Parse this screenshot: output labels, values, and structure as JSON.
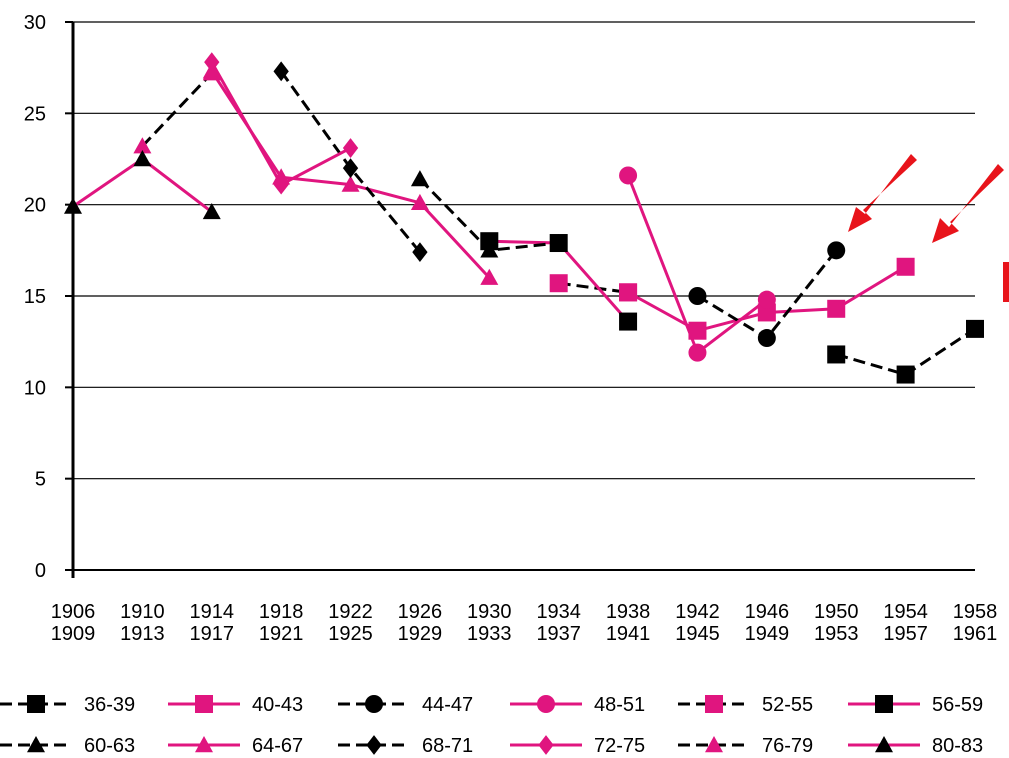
{
  "chart_data": {
    "type": "line",
    "categories": [
      [
        "1906",
        "1909"
      ],
      [
        "1910",
        "1913"
      ],
      [
        "1914",
        "1917"
      ],
      [
        "1918",
        "1921"
      ],
      [
        "1922",
        "1925"
      ],
      [
        "1926",
        "1929"
      ],
      [
        "1930",
        "1933"
      ],
      [
        "1934",
        "1937"
      ],
      [
        "1938",
        "1941"
      ],
      [
        "1942",
        "1945"
      ],
      [
        "1946",
        "1949"
      ],
      [
        "1950",
        "1953"
      ],
      [
        "1954",
        "1957"
      ],
      [
        "1958",
        "1961"
      ]
    ],
    "ylim": [
      0,
      30
    ],
    "yticks": [
      0,
      5,
      10,
      15,
      20,
      25,
      30
    ],
    "grid": true,
    "series": [
      {
        "name": "36-39",
        "color": "#000000",
        "marker_color": "#000000",
        "marker": "square",
        "dash": true,
        "values": [
          null,
          null,
          null,
          null,
          null,
          null,
          null,
          null,
          null,
          null,
          null,
          11.8,
          10.7,
          13.2
        ]
      },
      {
        "name": "40-43",
        "color": "#e0157f",
        "marker_color": "#e0157f",
        "marker": "square",
        "dash": false,
        "values": [
          null,
          null,
          null,
          null,
          null,
          null,
          null,
          null,
          15.2,
          13.1,
          14.1,
          14.3,
          16.6,
          null
        ]
      },
      {
        "name": "44-47",
        "color": "#000000",
        "marker_color": "#000000",
        "marker": "circle",
        "dash": true,
        "values": [
          null,
          null,
          null,
          null,
          null,
          null,
          null,
          null,
          null,
          15.0,
          12.7,
          17.5,
          null,
          null
        ]
      },
      {
        "name": "48-51",
        "color": "#e0157f",
        "marker_color": "#e0157f",
        "marker": "circle",
        "dash": false,
        "values": [
          null,
          null,
          null,
          null,
          null,
          null,
          null,
          null,
          21.6,
          11.9,
          14.8,
          null,
          null,
          null
        ]
      },
      {
        "name": "52-55",
        "color": "#000000",
        "marker_color": "#e0157f",
        "marker": "square",
        "dash": true,
        "values": [
          null,
          null,
          null,
          null,
          null,
          null,
          null,
          15.7,
          15.2,
          null,
          null,
          null,
          null,
          null
        ]
      },
      {
        "name": "56-59",
        "color": "#e0157f",
        "marker_color": "#000000",
        "marker": "square",
        "dash": false,
        "values": [
          null,
          null,
          null,
          null,
          null,
          null,
          18.0,
          17.9,
          13.6,
          null,
          null,
          null,
          null,
          null
        ]
      },
      {
        "name": "60-63",
        "color": "#000000",
        "marker_color": "#000000",
        "marker": "triangle",
        "dash": true,
        "values": [
          null,
          null,
          null,
          null,
          null,
          21.4,
          17.5,
          17.9,
          null,
          null,
          null,
          null,
          null,
          null
        ]
      },
      {
        "name": "64-67",
        "color": "#e0157f",
        "marker_color": "#e0157f",
        "marker": "triangle",
        "dash": false,
        "values": [
          null,
          null,
          27.3,
          21.5,
          21.1,
          20.1,
          16.0,
          null,
          null,
          null,
          null,
          null,
          null,
          null
        ]
      },
      {
        "name": "68-71",
        "color": "#000000",
        "marker_color": "#000000",
        "marker": "diamond",
        "dash": true,
        "values": [
          null,
          null,
          null,
          27.3,
          22.0,
          17.4,
          null,
          null,
          null,
          null,
          null,
          null,
          null,
          null
        ]
      },
      {
        "name": "72-75",
        "color": "#e0157f",
        "marker_color": "#e0157f",
        "marker": "diamond",
        "dash": false,
        "values": [
          null,
          null,
          27.8,
          21.1,
          23.1,
          null,
          null,
          null,
          null,
          null,
          null,
          null,
          null,
          null
        ]
      },
      {
        "name": "76-79",
        "color": "#000000",
        "marker_color": "#e0157f",
        "marker": "triangle",
        "dash": true,
        "values": [
          null,
          23.2,
          27.2,
          null,
          null,
          null,
          null,
          null,
          null,
          null,
          null,
          null,
          null,
          null
        ]
      },
      {
        "name": "80-83",
        "color": "#e0157f",
        "marker_color": "#000000",
        "marker": "triangle",
        "dash": false,
        "values": [
          19.9,
          22.5,
          19.6,
          null,
          null,
          null,
          null,
          null,
          null,
          null,
          null,
          null,
          null,
          null
        ]
      }
    ]
  }
}
